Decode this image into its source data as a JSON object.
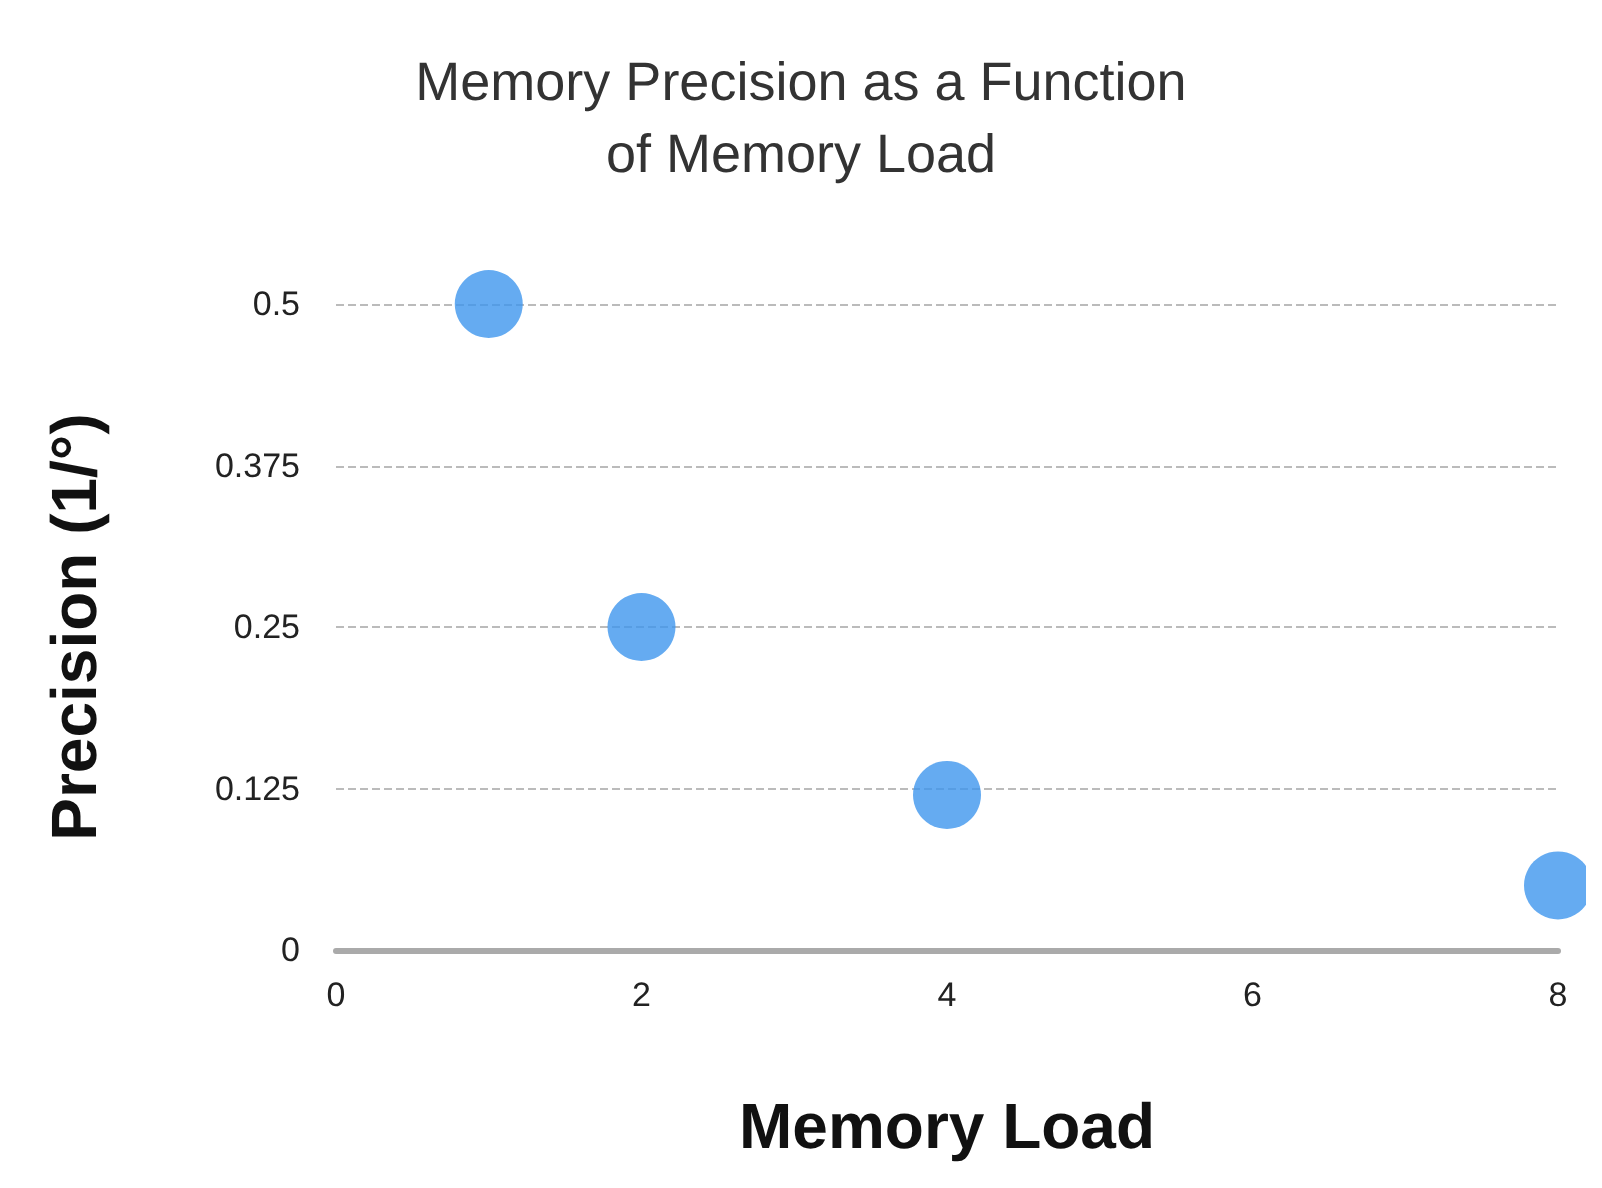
{
  "chart_data": {
    "type": "scatter",
    "title": "Memory Precision as a Function\nof Memory Load",
    "xlabel": "Memory Load",
    "ylabel": "Precision (1/°)",
    "x": [
      1,
      2,
      4,
      8
    ],
    "series": [
      {
        "color": "#3f96ee",
        "values": [
          0.5,
          0.25,
          0.12,
          0.05
        ]
      }
    ],
    "xlim": [
      0,
      8
    ],
    "xticks": [
      0,
      2,
      4,
      6,
      8
    ],
    "ylim": [
      0,
      0.5
    ],
    "yticks": [
      0,
      0.125,
      0.25,
      0.375,
      0.5
    ],
    "grid": "y",
    "marker": "circle"
  }
}
